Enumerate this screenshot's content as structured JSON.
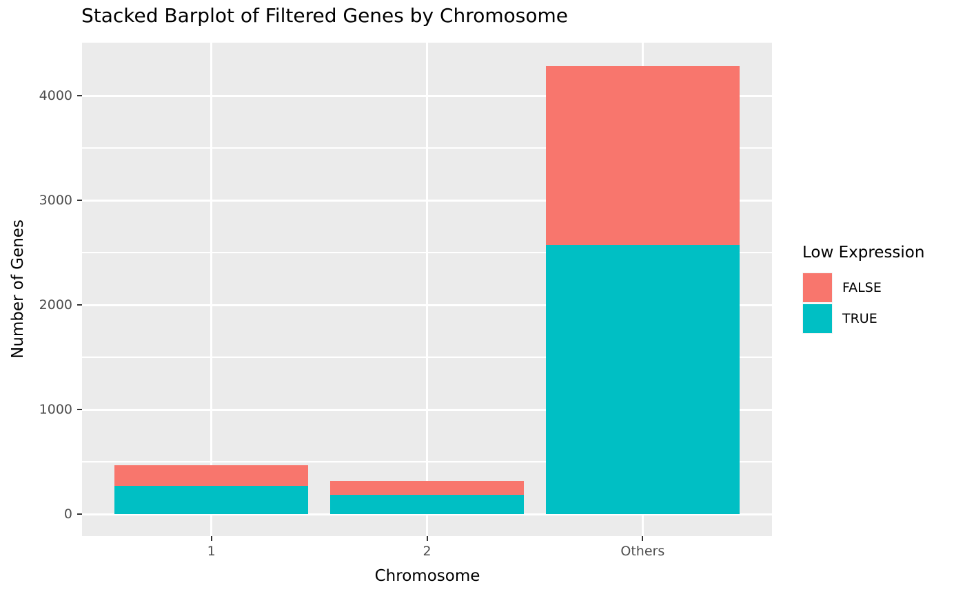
{
  "title": "Stacked Barplot of Filtered Genes by Chromosome",
  "chart_data": {
    "type": "bar",
    "stacked": true,
    "title": "Stacked Barplot of Filtered Genes by Chromosome",
    "xlabel": "Chromosome",
    "ylabel": "Number of Genes",
    "categories": [
      "1",
      "2",
      "Others"
    ],
    "series": [
      {
        "name": "FALSE",
        "color": "#F8766D",
        "values": [
          200,
          130,
          1710
        ]
      },
      {
        "name": "TRUE",
        "color": "#00BFC4",
        "values": [
          270,
          185,
          2570
        ]
      }
    ],
    "stack_order_top_to_bottom": [
      "FALSE",
      "TRUE"
    ],
    "totals": [
      470,
      315,
      4280
    ],
    "y_ticks": [
      0,
      1000,
      2000,
      3000,
      4000
    ],
    "y_minor_ticks": [
      500,
      1500,
      2500,
      3500
    ],
    "ylim": [
      0,
      4280
    ],
    "grid": true,
    "legend": {
      "title": "Low Expression",
      "position": "right",
      "entries": [
        {
          "label": "FALSE",
          "color": "#F8766D"
        },
        {
          "label": "TRUE",
          "color": "#00BFC4"
        }
      ]
    },
    "style": {
      "panel_bg": "#EBEBEB",
      "grid_color": "#ffffff",
      "tick_label_color": "#4D4D4D",
      "tick_mark_color": "#333333",
      "text_color": "#000000",
      "legend_key_bg": "#F2F2F2"
    }
  }
}
